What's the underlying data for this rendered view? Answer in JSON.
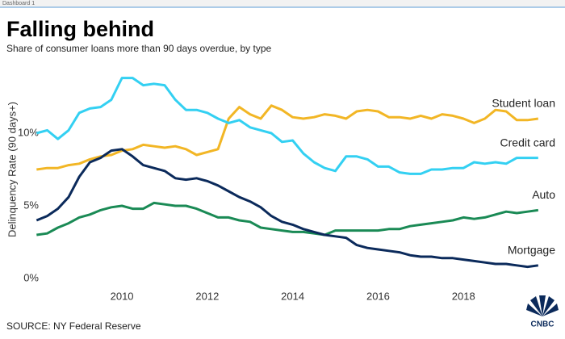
{
  "tab": "Dashboard 1",
  "chart_data": {
    "type": "line",
    "title": "Falling behind",
    "subtitle": "Share of consumer loans more than 90 days overdue, by type",
    "y_label": "Delinquency Rate (90 days+)",
    "source": "SOURCE: NY Federal Reserve",
    "logo": "CNBC",
    "x": [
      2008,
      2008.25,
      2008.5,
      2008.75,
      2009,
      2009.25,
      2009.5,
      2009.75,
      2010,
      2010.25,
      2010.5,
      2010.75,
      2011,
      2011.25,
      2011.5,
      2011.75,
      2012,
      2012.25,
      2012.5,
      2012.75,
      2013,
      2013.25,
      2013.5,
      2013.75,
      2014,
      2014.25,
      2014.5,
      2014.75,
      2015,
      2015.25,
      2015.5,
      2015.75,
      2016,
      2016.25,
      2016.5,
      2016.75,
      2017,
      2017.25,
      2017.5,
      2017.75,
      2018,
      2018.25,
      2018.5,
      2018.75,
      2019,
      2019.25,
      2019.5,
      2019.75
    ],
    "xlim": [
      2007.9,
      2020.0
    ],
    "xticks": [
      2010,
      2012,
      2014,
      2016,
      2018
    ],
    "ylim": [
      0,
      15
    ],
    "yticks": [
      {
        "value": 0,
        "label": "0%"
      },
      {
        "value": 5,
        "label": "5%"
      },
      {
        "value": 10,
        "label": "10%"
      }
    ],
    "grid": false,
    "series": [
      {
        "name": "Student loan",
        "color": "#f2b625",
        "values": [
          7.5,
          7.6,
          7.6,
          7.8,
          7.9,
          8.2,
          8.4,
          8.5,
          8.8,
          8.9,
          9.2,
          9.1,
          9.0,
          9.1,
          8.9,
          8.5,
          8.7,
          8.9,
          11.0,
          11.8,
          11.3,
          11.0,
          11.9,
          11.6,
          11.1,
          11.0,
          11.1,
          11.3,
          11.2,
          11.0,
          11.5,
          11.6,
          11.5,
          11.1,
          11.1,
          11.0,
          11.2,
          11.0,
          11.3,
          11.2,
          11.0,
          10.7,
          11.0,
          11.6,
          11.5,
          10.9,
          10.9,
          11.0
        ]
      },
      {
        "name": "Credit card",
        "color": "#33d0f2",
        "values": [
          10.0,
          10.2,
          9.6,
          10.2,
          11.4,
          11.7,
          11.8,
          12.3,
          13.8,
          13.8,
          13.3,
          13.4,
          13.3,
          12.3,
          11.6,
          11.6,
          11.4,
          11.0,
          10.7,
          10.9,
          10.4,
          10.2,
          10.0,
          9.4,
          9.5,
          8.6,
          8.0,
          7.6,
          7.4,
          8.4,
          8.4,
          8.2,
          7.7,
          7.7,
          7.3,
          7.2,
          7.2,
          7.5,
          7.5,
          7.6,
          7.6,
          8.0,
          7.9,
          8.0,
          7.9,
          8.3,
          8.3,
          8.3
        ]
      },
      {
        "name": "Auto",
        "color": "#1a8a55",
        "values": [
          3.0,
          3.1,
          3.5,
          3.8,
          4.2,
          4.4,
          4.7,
          4.9,
          5.0,
          4.8,
          4.8,
          5.2,
          5.1,
          5.0,
          5.0,
          4.8,
          4.5,
          4.2,
          4.2,
          4.0,
          3.9,
          3.5,
          3.4,
          3.3,
          3.2,
          3.2,
          3.1,
          3.0,
          3.3,
          3.3,
          3.3,
          3.3,
          3.3,
          3.4,
          3.4,
          3.6,
          3.7,
          3.8,
          3.9,
          4.0,
          4.2,
          4.1,
          4.2,
          4.4,
          4.6,
          4.5,
          4.6,
          4.7
        ]
      },
      {
        "name": "Mortgage",
        "color": "#0b2a5b",
        "values": [
          4.0,
          4.3,
          4.8,
          5.6,
          7.0,
          8.0,
          8.3,
          8.8,
          8.9,
          8.4,
          7.8,
          7.6,
          7.4,
          6.9,
          6.8,
          6.9,
          6.7,
          6.4,
          6.0,
          5.6,
          5.3,
          4.9,
          4.3,
          3.9,
          3.7,
          3.4,
          3.2,
          3.0,
          2.9,
          2.8,
          2.3,
          2.1,
          2.0,
          1.9,
          1.8,
          1.6,
          1.5,
          1.5,
          1.4,
          1.4,
          1.3,
          1.2,
          1.1,
          1.0,
          1.0,
          0.9,
          0.8,
          0.9
        ]
      }
    ]
  }
}
